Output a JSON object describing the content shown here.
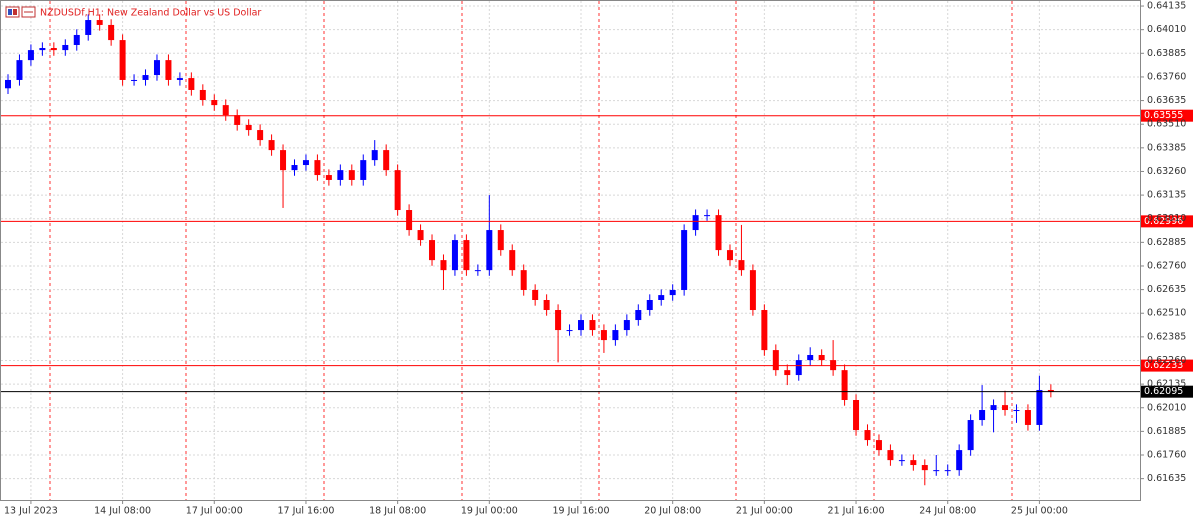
{
  "chart_data": {
    "type": "candlestick",
    "title": "NZDUSDf,H1:  New Zealand Dollar vs US Dollar",
    "categories": [
      null,
      null,
      "13 Jul 2023",
      null,
      null,
      null,
      null,
      null,
      null,
      null,
      "14 Jul 08:00",
      null,
      null,
      null,
      null,
      null,
      null,
      null,
      "17 Jul 00:00",
      null,
      null,
      null,
      null,
      null,
      null,
      null,
      "17 Jul 16:00",
      null,
      null,
      null,
      null,
      null,
      null,
      null,
      "18 Jul 08:00",
      null,
      null,
      null,
      null,
      null,
      null,
      null,
      "19 Jul 00:00",
      null,
      null,
      null,
      null,
      null,
      null,
      null,
      "19 Jul 16:00",
      null,
      null,
      null,
      null,
      null,
      null,
      null,
      "20 Jul 08:00",
      null,
      null,
      null,
      null,
      null,
      null,
      null,
      "21 Jul 00:00",
      null,
      null,
      null,
      null,
      null,
      null,
      null,
      "21 Jul 16:00",
      null,
      null,
      null,
      null,
      null,
      null,
      null,
      "24 Jul 08:00",
      null,
      null,
      null,
      null,
      null,
      null,
      null,
      "25 Jul 00:00",
      null
    ],
    "ohlc": [
      [
        0.637,
        0.63774,
        0.6367,
        0.63744
      ],
      [
        0.63744,
        0.63879,
        0.63714,
        0.63849
      ],
      [
        0.63849,
        0.63932,
        0.63819,
        0.63902
      ],
      [
        0.63902,
        0.63943,
        0.63872,
        0.63913
      ],
      [
        0.63913,
        0.63943,
        0.63872,
        0.63902
      ],
      [
        0.63902,
        0.63959,
        0.63872,
        0.63929
      ],
      [
        0.63929,
        0.64012,
        0.63899,
        0.63982
      ],
      [
        0.63982,
        0.64091,
        0.63952,
        0.64061
      ],
      [
        0.64061,
        0.64091,
        0.64005,
        0.64035
      ],
      [
        0.64035,
        0.64065,
        0.63925,
        0.63955
      ],
      [
        0.63955,
        0.63985,
        0.63714,
        0.63744
      ],
      [
        0.63744,
        0.63774,
        0.63714,
        0.63744
      ],
      [
        0.63744,
        0.638,
        0.63714,
        0.6377
      ],
      [
        0.6377,
        0.63879,
        0.6374,
        0.63849
      ],
      [
        0.63849,
        0.63879,
        0.63714,
        0.63744
      ],
      [
        0.63744,
        0.63784,
        0.63714,
        0.63754
      ],
      [
        0.63754,
        0.63784,
        0.63661,
        0.63691
      ],
      [
        0.63691,
        0.63721,
        0.63608,
        0.63638
      ],
      [
        0.63638,
        0.63668,
        0.63581,
        0.63611
      ],
      [
        0.63611,
        0.63641,
        0.63528,
        0.63558
      ],
      [
        0.63558,
        0.63588,
        0.63476,
        0.63506
      ],
      [
        0.63506,
        0.63536,
        0.63449,
        0.63479
      ],
      [
        0.63479,
        0.63509,
        0.63396,
        0.63426
      ],
      [
        0.63426,
        0.63456,
        0.63343,
        0.63373
      ],
      [
        0.63373,
        0.63403,
        0.63067,
        0.63267
      ],
      [
        0.63267,
        0.63324,
        0.63237,
        0.63294
      ],
      [
        0.63294,
        0.6335,
        0.63264,
        0.6332
      ],
      [
        0.6332,
        0.6335,
        0.63211,
        0.63241
      ],
      [
        0.63241,
        0.63271,
        0.63185,
        0.63215
      ],
      [
        0.63215,
        0.63297,
        0.63185,
        0.63267
      ],
      [
        0.63267,
        0.63297,
        0.63185,
        0.63215
      ],
      [
        0.63215,
        0.6335,
        0.63185,
        0.6332
      ],
      [
        0.6332,
        0.63426,
        0.6329,
        0.63373
      ],
      [
        0.63373,
        0.63403,
        0.63237,
        0.63267
      ],
      [
        0.63267,
        0.63297,
        0.63026,
        0.63056
      ],
      [
        0.63056,
        0.63086,
        0.6292,
        0.6295
      ],
      [
        0.6295,
        0.6298,
        0.62867,
        0.62897
      ],
      [
        0.62897,
        0.62927,
        0.62761,
        0.62791
      ],
      [
        0.62791,
        0.62821,
        0.62633,
        0.62738
      ],
      [
        0.62738,
        0.62927,
        0.62708,
        0.62897
      ],
      [
        0.62897,
        0.62927,
        0.62708,
        0.62738
      ],
      [
        0.62738,
        0.62768,
        0.62708,
        0.62738
      ],
      [
        0.62738,
        0.63135,
        0.62708,
        0.6295
      ],
      [
        0.6295,
        0.6298,
        0.62814,
        0.62844
      ],
      [
        0.62844,
        0.62874,
        0.62708,
        0.62738
      ],
      [
        0.62738,
        0.62768,
        0.62603,
        0.62633
      ],
      [
        0.62633,
        0.62663,
        0.6255,
        0.6258
      ],
      [
        0.6258,
        0.6261,
        0.62497,
        0.62527
      ],
      [
        0.62527,
        0.62557,
        0.6225,
        0.62421
      ],
      [
        0.62421,
        0.62451,
        0.62391,
        0.62421
      ],
      [
        0.62421,
        0.62504,
        0.62391,
        0.62474
      ],
      [
        0.62474,
        0.62504,
        0.62391,
        0.62421
      ],
      [
        0.62421,
        0.62451,
        0.623,
        0.62368
      ],
      [
        0.62368,
        0.62451,
        0.62338,
        0.62421
      ],
      [
        0.62421,
        0.62504,
        0.62391,
        0.62474
      ],
      [
        0.62474,
        0.62557,
        0.62444,
        0.62527
      ],
      [
        0.62527,
        0.6261,
        0.62497,
        0.6258
      ],
      [
        0.6258,
        0.62636,
        0.6255,
        0.62606
      ],
      [
        0.62606,
        0.62663,
        0.62576,
        0.62633
      ],
      [
        0.62633,
        0.6298,
        0.62603,
        0.6295
      ],
      [
        0.6295,
        0.63059,
        0.6292,
        0.63029
      ],
      [
        0.63029,
        0.63059,
        0.62999,
        0.63029
      ],
      [
        0.63029,
        0.63059,
        0.62814,
        0.62844
      ],
      [
        0.62844,
        0.62874,
        0.62761,
        0.62791
      ],
      [
        0.62791,
        0.62977,
        0.62708,
        0.62738
      ],
      [
        0.62738,
        0.62768,
        0.62497,
        0.62527
      ],
      [
        0.62527,
        0.62557,
        0.62285,
        0.62315
      ],
      [
        0.62315,
        0.62345,
        0.62179,
        0.62209
      ],
      [
        0.62209,
        0.62239,
        0.6213,
        0.62183
      ],
      [
        0.62183,
        0.62292,
        0.62153,
        0.62262
      ],
      [
        0.62262,
        0.6233,
        0.62232,
        0.62289
      ],
      [
        0.62289,
        0.62319,
        0.62232,
        0.62262
      ],
      [
        0.62262,
        0.62368,
        0.62179,
        0.62209
      ],
      [
        0.62209,
        0.62239,
        0.62021,
        0.62051
      ],
      [
        0.62051,
        0.62081,
        0.61862,
        0.61892
      ],
      [
        0.61892,
        0.61922,
        0.61809,
        0.61839
      ],
      [
        0.61839,
        0.61869,
        0.61756,
        0.61786
      ],
      [
        0.61786,
        0.61816,
        0.61703,
        0.61733
      ],
      [
        0.61733,
        0.61763,
        0.61703,
        0.61733
      ],
      [
        0.61733,
        0.61763,
        0.61677,
        0.61707
      ],
      [
        0.61707,
        0.61737,
        0.616,
        0.6168
      ],
      [
        0.6168,
        0.6176,
        0.6165,
        0.6168
      ],
      [
        0.6168,
        0.6171,
        0.6165,
        0.6168
      ],
      [
        0.6168,
        0.61816,
        0.6165,
        0.61786
      ],
      [
        0.61786,
        0.61975,
        0.61756,
        0.61945
      ],
      [
        0.61945,
        0.6213,
        0.61915,
        0.61998
      ],
      [
        0.61998,
        0.62054,
        0.6188,
        0.62024
      ],
      [
        0.62024,
        0.621,
        0.61968,
        0.61998
      ],
      [
        0.61998,
        0.62028,
        0.6193,
        0.61998
      ],
      [
        0.61998,
        0.62028,
        0.61889,
        0.61919
      ],
      [
        0.61919,
        0.6218,
        0.61889,
        0.62104
      ],
      [
        0.62104,
        0.62134,
        0.62065,
        0.62095
      ]
    ],
    "up_color": "#0000ff",
    "down_color": "#ff0000",
    "ylim": [
      0.61522,
      0.64167
    ],
    "yticks": [
      0.64135,
      {
        "value": 0.6401,
        "label": "0.64010"
      },
      0.63885,
      {
        "value": 0.6376,
        "label": "0.63760"
      },
      0.63635,
      {
        "value": 0.6351,
        "label": "0.63510"
      },
      0.63385,
      {
        "value": 0.6326,
        "label": "0.63260"
      },
      0.63135,
      {
        "value": 0.6301,
        "label": "0.63010"
      },
      0.62885,
      {
        "value": 0.6276,
        "label": "0.62760"
      },
      0.62635,
      {
        "value": 0.6251,
        "label": "0.62510"
      },
      0.62385,
      {
        "value": 0.6226,
        "label": "0.62260"
      },
      0.62135,
      {
        "value": 0.6201,
        "label": "0.62010"
      },
      0.61885,
      {
        "value": 0.6176,
        "label": "0.61760"
      },
      0.61635
    ],
    "grid": true,
    "levels": [
      {
        "value": 0.63555,
        "color": "#ff0000"
      },
      {
        "value": 0.62996,
        "color": "#ff0000"
      },
      {
        "value": 0.62233,
        "color": "#ff0000"
      },
      {
        "value": 0.62095,
        "color": "#000000"
      }
    ]
  }
}
